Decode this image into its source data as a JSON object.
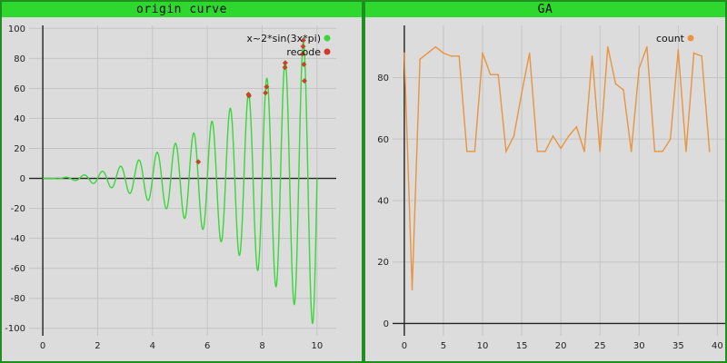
{
  "window": {
    "left_title": "origin curve",
    "right_title": "GA"
  },
  "colors": {
    "title_bg": "#2fd82f",
    "frame": "#1f8f1f",
    "plot_bg": "#dcdcdc",
    "grid": "#c4c4c4",
    "curve": "#3ad63a",
    "recode": "#d43a2a",
    "count": "#e89440"
  },
  "chart_data": [
    {
      "type": "line",
      "title": "origin curve",
      "function": "x^2*sin(3x*pi)",
      "xlim": [
        -0.5,
        10.7
      ],
      "ylim": [
        -105,
        102
      ],
      "xticks": [
        0,
        2,
        4,
        6,
        8,
        10
      ],
      "yticks": [
        -100,
        -80,
        -60,
        -40,
        -20,
        0,
        20,
        40,
        60,
        80,
        100
      ],
      "grid": true,
      "legend_position": "top-right",
      "legend": [
        "x~2*sin(3x*pi)",
        "recode"
      ],
      "series": [
        {
          "name": "x~2*sin(3x*pi)",
          "kind": "function",
          "x_range": [
            0,
            10
          ]
        },
        {
          "name": "recode",
          "kind": "scatter",
          "points": [
            [
              5.67,
              11
            ],
            [
              7.5,
              56
            ],
            [
              7.52,
              55
            ],
            [
              8.12,
              57
            ],
            [
              8.16,
              61
            ],
            [
              8.83,
              74
            ],
            [
              8.84,
              77
            ],
            [
              9.47,
              83
            ],
            [
              9.49,
              88
            ],
            [
              9.5,
              92
            ],
            [
              9.52,
              76
            ],
            [
              9.54,
              65
            ]
          ]
        }
      ]
    },
    {
      "type": "line",
      "title": "GA",
      "xlim": [
        -1.5,
        41
      ],
      "ylim": [
        -4,
        97
      ],
      "xticks": [
        0,
        5,
        10,
        15,
        20,
        25,
        30,
        35,
        40
      ],
      "yticks": [
        0,
        20,
        40,
        60,
        80
      ],
      "grid": true,
      "legend_position": "top-right",
      "legend": [
        "count"
      ],
      "series": [
        {
          "name": "count",
          "x": [
            0,
            1,
            2,
            3,
            4,
            5,
            6,
            7,
            8,
            9,
            10,
            11,
            12,
            13,
            14,
            15,
            16,
            17,
            18,
            19,
            20,
            21,
            22,
            23,
            24,
            25,
            26,
            27,
            28,
            29,
            30,
            31,
            32,
            33,
            34,
            35,
            36,
            37,
            38,
            39
          ],
          "values": [
            88,
            11,
            86,
            88,
            90,
            88,
            87,
            87,
            56,
            56,
            88,
            81,
            81,
            56,
            61,
            75,
            88,
            56,
            56,
            61,
            57,
            61,
            64,
            56,
            87,
            56,
            90,
            78,
            76,
            56,
            83,
            90,
            56,
            56,
            60,
            89,
            56,
            88,
            87,
            56
          ]
        }
      ]
    }
  ]
}
